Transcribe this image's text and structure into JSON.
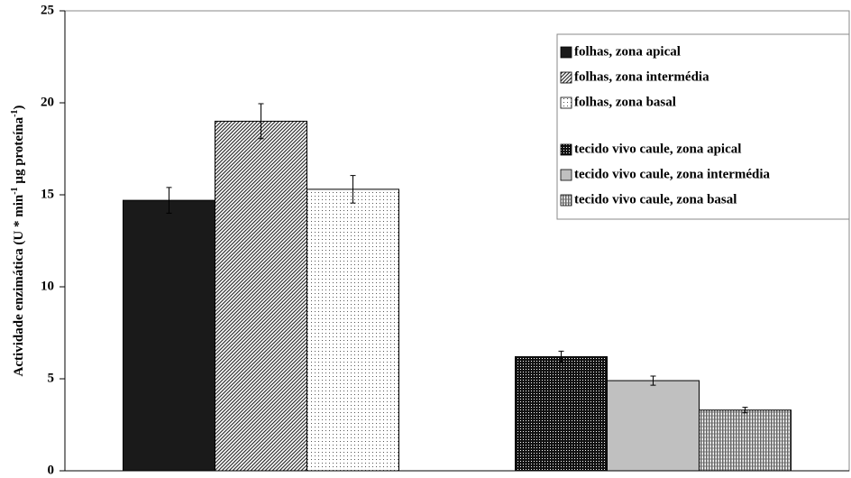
{
  "chart_data": {
    "type": "bar",
    "categories": [
      null,
      null
    ],
    "ylabel_parts": [
      "Actividade enzimática  (U * min",
      "-1",
      " µg proteína",
      "-1",
      ")"
    ],
    "series": [
      {
        "name": "folhas, zona apical",
        "color": "#1a1a1a",
        "pattern": "solid",
        "values": [
          14.7,
          null
        ],
        "errors": [
          0.7,
          null
        ]
      },
      {
        "name": "folhas, zona intermédia",
        "color": "#333333",
        "pattern": "diagonal",
        "values": [
          19.0,
          null
        ],
        "errors": [
          0.95,
          null
        ]
      },
      {
        "name": "folhas, zona basal",
        "color": "#555555",
        "pattern": "sparse-dots",
        "values": [
          15.3,
          null
        ],
        "errors": [
          0.75,
          null
        ]
      },
      {
        "name": "tecido vivo caule, zona apical",
        "color": "#111111",
        "pattern": "dense-dots",
        "values": [
          null,
          6.2
        ],
        "errors": [
          null,
          0.3
        ]
      },
      {
        "name": "tecido vivo caule, zona intermédia",
        "color": "#c0c0c0",
        "pattern": "solid",
        "values": [
          null,
          4.9
        ],
        "errors": [
          null,
          0.25
        ]
      },
      {
        "name": "tecido vivo caule, zona basal",
        "color": "#666666",
        "pattern": "vertical",
        "values": [
          null,
          3.3
        ],
        "errors": [
          null,
          0.15
        ]
      }
    ],
    "ylim": [
      0,
      25
    ],
    "yticks": [
      0,
      5,
      10,
      15,
      20,
      25
    ],
    "grid": false,
    "legend": "top-right"
  }
}
